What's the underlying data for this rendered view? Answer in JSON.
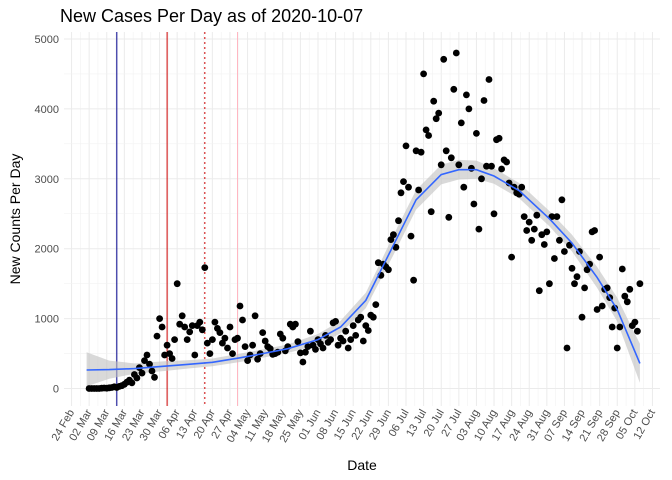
{
  "chart_data": {
    "type": "scatter",
    "title": "New Cases Per Day as of 2020-10-07",
    "xlabel": "Date",
    "ylabel": "New Counts Per Day",
    "ylim": [
      -250,
      5100
    ],
    "xlim": [
      "2020-02-21",
      "2020-10-15"
    ],
    "grid": true,
    "legend": "none",
    "x_ticks": [
      "2020-02-24",
      "2020-03-02",
      "2020-03-09",
      "2020-03-16",
      "2020-03-23",
      "2020-03-30",
      "2020-04-06",
      "2020-04-13",
      "2020-04-20",
      "2020-04-27",
      "2020-05-04",
      "2020-05-11",
      "2020-05-18",
      "2020-05-25",
      "2020-06-01",
      "2020-06-08",
      "2020-06-15",
      "2020-06-22",
      "2020-06-29",
      "2020-07-06",
      "2020-07-13",
      "2020-07-20",
      "2020-07-27",
      "2020-08-03",
      "2020-08-10",
      "2020-08-17",
      "2020-08-24",
      "2020-08-31",
      "2020-09-07",
      "2020-09-14",
      "2020-09-21",
      "2020-09-28",
      "2020-10-05",
      "2020-10-12"
    ],
    "x_tick_labels": [
      "24 Feb",
      "02 Mar",
      "09 Mar",
      "16 Mar",
      "23 Mar",
      "30 Mar",
      "06 Apr",
      "13 Apr",
      "20 Apr",
      "27 Apr",
      "04 May",
      "11 May",
      "18 May",
      "25 May",
      "01 Jun",
      "08 Jun",
      "15 Jun",
      "22 Jun",
      "29 Jun",
      "06 Jul",
      "13 Jul",
      "20 Jul",
      "27 Jul",
      "03 Aug",
      "10 Aug",
      "17 Aug",
      "24 Aug",
      "31 Aug",
      "07 Sep",
      "14 Sep",
      "21 Sep",
      "28 Sep",
      "05 Oct",
      "12 Oct"
    ],
    "y_ticks": [
      0,
      1000,
      2000,
      3000,
      4000,
      5000
    ],
    "y_tick_labels": [
      "0",
      "1000",
      "2000",
      "3000",
      "4000",
      "5000"
    ],
    "vlines": [
      {
        "date": "2020-03-13",
        "color": "#00008b",
        "style": "solid"
      },
      {
        "date": "2020-04-02",
        "color": "#cc0000",
        "style": "solid"
      },
      {
        "date": "2020-04-17",
        "color": "#cc0000",
        "style": "dotted"
      },
      {
        "date": "2020-04-30",
        "color": "#ffb6c1",
        "style": "solid"
      }
    ],
    "series": [
      {
        "type": "points",
        "color": "#000000",
        "points": [
          [
            "2020-03-02",
            0
          ],
          [
            "2020-03-03",
            0
          ],
          [
            "2020-03-04",
            0
          ],
          [
            "2020-03-05",
            0
          ],
          [
            "2020-03-06",
            0
          ],
          [
            "2020-03-07",
            5
          ],
          [
            "2020-03-08",
            8
          ],
          [
            "2020-03-09",
            5
          ],
          [
            "2020-03-10",
            10
          ],
          [
            "2020-03-11",
            15
          ],
          [
            "2020-03-12",
            25
          ],
          [
            "2020-03-13",
            15
          ],
          [
            "2020-03-14",
            30
          ],
          [
            "2020-03-15",
            40
          ],
          [
            "2020-03-16",
            60
          ],
          [
            "2020-03-17",
            90
          ],
          [
            "2020-03-18",
            120
          ],
          [
            "2020-03-19",
            80
          ],
          [
            "2020-03-20",
            200
          ],
          [
            "2020-03-21",
            150
          ],
          [
            "2020-03-22",
            300
          ],
          [
            "2020-03-23",
            220
          ],
          [
            "2020-03-24",
            400
          ],
          [
            "2020-03-25",
            480
          ],
          [
            "2020-03-26",
            350
          ],
          [
            "2020-03-27",
            250
          ],
          [
            "2020-03-28",
            160
          ],
          [
            "2020-03-29",
            750
          ],
          [
            "2020-03-30",
            1000
          ],
          [
            "2020-03-31",
            880
          ],
          [
            "2020-04-01",
            480
          ],
          [
            "2020-04-02",
            620
          ],
          [
            "2020-04-03",
            500
          ],
          [
            "2020-04-04",
            430
          ],
          [
            "2020-04-05",
            700
          ],
          [
            "2020-04-06",
            1500
          ],
          [
            "2020-04-07",
            920
          ],
          [
            "2020-04-08",
            1040
          ],
          [
            "2020-04-09",
            880
          ],
          [
            "2020-04-10",
            700
          ],
          [
            "2020-04-11",
            810
          ],
          [
            "2020-04-12",
            900
          ],
          [
            "2020-04-13",
            480
          ],
          [
            "2020-04-14",
            900
          ],
          [
            "2020-04-15",
            950
          ],
          [
            "2020-04-16",
            840
          ],
          [
            "2020-04-17",
            1730
          ],
          [
            "2020-04-18",
            650
          ],
          [
            "2020-04-19",
            500
          ],
          [
            "2020-04-20",
            700
          ],
          [
            "2020-04-21",
            950
          ],
          [
            "2020-04-22",
            860
          ],
          [
            "2020-04-23",
            800
          ],
          [
            "2020-04-24",
            650
          ],
          [
            "2020-04-25",
            720
          ],
          [
            "2020-04-26",
            580
          ],
          [
            "2020-04-27",
            880
          ],
          [
            "2020-04-28",
            500
          ],
          [
            "2020-04-29",
            700
          ],
          [
            "2020-04-30",
            720
          ],
          [
            "2020-05-01",
            1180
          ],
          [
            "2020-05-02",
            980
          ],
          [
            "2020-05-03",
            600
          ],
          [
            "2020-05-04",
            400
          ],
          [
            "2020-05-05",
            480
          ],
          [
            "2020-05-06",
            620
          ],
          [
            "2020-05-07",
            1040
          ],
          [
            "2020-05-08",
            420
          ],
          [
            "2020-05-09",
            500
          ],
          [
            "2020-05-10",
            800
          ],
          [
            "2020-05-11",
            680
          ],
          [
            "2020-05-12",
            600
          ],
          [
            "2020-05-13",
            570
          ],
          [
            "2020-05-14",
            490
          ],
          [
            "2020-05-15",
            500
          ],
          [
            "2020-05-16",
            520
          ],
          [
            "2020-05-17",
            780
          ],
          [
            "2020-05-18",
            720
          ],
          [
            "2020-05-19",
            540
          ],
          [
            "2020-05-20",
            600
          ],
          [
            "2020-05-21",
            920
          ],
          [
            "2020-05-22",
            880
          ],
          [
            "2020-05-23",
            920
          ],
          [
            "2020-05-24",
            670
          ],
          [
            "2020-05-25",
            510
          ],
          [
            "2020-05-26",
            380
          ],
          [
            "2020-05-27",
            520
          ],
          [
            "2020-05-28",
            600
          ],
          [
            "2020-05-29",
            820
          ],
          [
            "2020-05-30",
            620
          ],
          [
            "2020-05-31",
            560
          ],
          [
            "2020-06-01",
            700
          ],
          [
            "2020-06-02",
            640
          ],
          [
            "2020-06-03",
            580
          ],
          [
            "2020-06-04",
            760
          ],
          [
            "2020-06-05",
            660
          ],
          [
            "2020-06-06",
            700
          ],
          [
            "2020-06-07",
            940
          ],
          [
            "2020-06-08",
            960
          ],
          [
            "2020-06-09",
            620
          ],
          [
            "2020-06-10",
            720
          ],
          [
            "2020-06-11",
            680
          ],
          [
            "2020-06-12",
            820
          ],
          [
            "2020-06-13",
            580
          ],
          [
            "2020-06-14",
            700
          ],
          [
            "2020-06-15",
            900
          ],
          [
            "2020-06-16",
            760
          ],
          [
            "2020-06-17",
            980
          ],
          [
            "2020-06-18",
            1020
          ],
          [
            "2020-06-19",
            680
          ],
          [
            "2020-06-20",
            900
          ],
          [
            "2020-06-21",
            830
          ],
          [
            "2020-06-22",
            1050
          ],
          [
            "2020-06-23",
            1020
          ],
          [
            "2020-06-24",
            1200
          ],
          [
            "2020-06-25",
            1800
          ],
          [
            "2020-06-26",
            1620
          ],
          [
            "2020-06-27",
            1780
          ],
          [
            "2020-06-28",
            1740
          ],
          [
            "2020-06-29",
            1700
          ],
          [
            "2020-06-30",
            2130
          ],
          [
            "2020-07-01",
            2200
          ],
          [
            "2020-07-02",
            2020
          ],
          [
            "2020-07-03",
            2400
          ],
          [
            "2020-07-04",
            2800
          ],
          [
            "2020-07-05",
            2960
          ],
          [
            "2020-07-06",
            3470
          ],
          [
            "2020-07-07",
            2880
          ],
          [
            "2020-07-08",
            2180
          ],
          [
            "2020-07-09",
            1550
          ],
          [
            "2020-07-10",
            3400
          ],
          [
            "2020-07-11",
            2840
          ],
          [
            "2020-07-12",
            3380
          ],
          [
            "2020-07-13",
            4500
          ],
          [
            "2020-07-14",
            3700
          ],
          [
            "2020-07-15",
            3620
          ],
          [
            "2020-07-16",
            2530
          ],
          [
            "2020-07-17",
            4110
          ],
          [
            "2020-07-18",
            3860
          ],
          [
            "2020-07-19",
            3940
          ],
          [
            "2020-07-20",
            3200
          ],
          [
            "2020-07-21",
            4710
          ],
          [
            "2020-07-22",
            3400
          ],
          [
            "2020-07-23",
            2450
          ],
          [
            "2020-07-24",
            3300
          ],
          [
            "2020-07-25",
            4280
          ],
          [
            "2020-07-26",
            4800
          ],
          [
            "2020-07-27",
            3200
          ],
          [
            "2020-07-28",
            3800
          ],
          [
            "2020-07-29",
            2880
          ],
          [
            "2020-07-30",
            4200
          ],
          [
            "2020-07-31",
            4000
          ],
          [
            "2020-08-01",
            3150
          ],
          [
            "2020-08-02",
            2640
          ],
          [
            "2020-08-03",
            3650
          ],
          [
            "2020-08-04",
            2280
          ],
          [
            "2020-08-05",
            3000
          ],
          [
            "2020-08-06",
            4120
          ],
          [
            "2020-08-07",
            3180
          ],
          [
            "2020-08-08",
            4420
          ],
          [
            "2020-08-09",
            3180
          ],
          [
            "2020-08-10",
            2500
          ],
          [
            "2020-08-11",
            3560
          ],
          [
            "2020-08-12",
            3580
          ],
          [
            "2020-08-13",
            3140
          ],
          [
            "2020-08-14",
            3270
          ],
          [
            "2020-08-15",
            3240
          ],
          [
            "2020-08-16",
            2940
          ],
          [
            "2020-08-17",
            1880
          ],
          [
            "2020-08-18",
            2880
          ],
          [
            "2020-08-19",
            2800
          ],
          [
            "2020-08-20",
            2780
          ],
          [
            "2020-08-21",
            2880
          ],
          [
            "2020-08-22",
            2460
          ],
          [
            "2020-08-23",
            2260
          ],
          [
            "2020-08-24",
            2380
          ],
          [
            "2020-08-25",
            2120
          ],
          [
            "2020-08-26",
            2280
          ],
          [
            "2020-08-27",
            2480
          ],
          [
            "2020-08-28",
            1400
          ],
          [
            "2020-08-29",
            2200
          ],
          [
            "2020-08-30",
            2060
          ],
          [
            "2020-08-31",
            2240
          ],
          [
            "2020-09-01",
            1500
          ],
          [
            "2020-09-02",
            2460
          ],
          [
            "2020-09-03",
            1860
          ],
          [
            "2020-09-04",
            2460
          ],
          [
            "2020-09-05",
            2120
          ],
          [
            "2020-09-06",
            2700
          ],
          [
            "2020-09-07",
            1960
          ],
          [
            "2020-09-08",
            580
          ],
          [
            "2020-09-09",
            2050
          ],
          [
            "2020-09-10",
            1720
          ],
          [
            "2020-09-11",
            1500
          ],
          [
            "2020-09-12",
            1600
          ],
          [
            "2020-09-13",
            1960
          ],
          [
            "2020-09-14",
            1020
          ],
          [
            "2020-09-15",
            1440
          ],
          [
            "2020-09-16",
            1700
          ],
          [
            "2020-09-17",
            1780
          ],
          [
            "2020-09-18",
            2240
          ],
          [
            "2020-09-19",
            2260
          ],
          [
            "2020-09-20",
            1130
          ],
          [
            "2020-09-21",
            1880
          ],
          [
            "2020-09-22",
            1180
          ],
          [
            "2020-09-23",
            1420
          ],
          [
            "2020-09-24",
            1440
          ],
          [
            "2020-09-25",
            1300
          ],
          [
            "2020-09-26",
            880
          ],
          [
            "2020-09-27",
            1150
          ],
          [
            "2020-09-28",
            580
          ],
          [
            "2020-09-29",
            880
          ],
          [
            "2020-09-30",
            1710
          ],
          [
            "2020-10-01",
            1320
          ],
          [
            "2020-10-02",
            1240
          ],
          [
            "2020-10-03",
            1420
          ],
          [
            "2020-10-04",
            900
          ],
          [
            "2020-10-05",
            950
          ],
          [
            "2020-10-06",
            820
          ],
          [
            "2020-10-07",
            1500
          ]
        ]
      },
      {
        "type": "smooth",
        "color": "#3366ff",
        "band_color": "#bfbfbf",
        "points": [
          [
            "2020-03-01",
            265
          ],
          [
            "2020-03-10",
            270
          ],
          [
            "2020-03-20",
            285
          ],
          [
            "2020-04-01",
            320
          ],
          [
            "2020-04-10",
            345
          ],
          [
            "2020-04-20",
            375
          ],
          [
            "2020-05-01",
            440
          ],
          [
            "2020-05-10",
            500
          ],
          [
            "2020-05-20",
            570
          ],
          [
            "2020-06-01",
            700
          ],
          [
            "2020-06-10",
            880
          ],
          [
            "2020-06-20",
            1260
          ],
          [
            "2020-07-01",
            2050
          ],
          [
            "2020-07-10",
            2700
          ],
          [
            "2020-07-20",
            3060
          ],
          [
            "2020-07-27",
            3130
          ],
          [
            "2020-08-03",
            3130
          ],
          [
            "2020-08-10",
            3040
          ],
          [
            "2020-08-20",
            2830
          ],
          [
            "2020-09-01",
            2430
          ],
          [
            "2020-09-10",
            2080
          ],
          [
            "2020-09-20",
            1590
          ],
          [
            "2020-09-28",
            1130
          ],
          [
            "2020-10-07",
            360
          ]
        ],
        "lower": [
          30,
          140,
          210,
          250,
          285,
          320,
          380,
          440,
          510,
          620,
          790,
          1150,
          1910,
          2560,
          2920,
          2990,
          3000,
          2930,
          2720,
          2320,
          1960,
          1440,
          960,
          80
        ],
        "upper": [
          520,
          400,
          360,
          390,
          405,
          430,
          500,
          560,
          630,
          780,
          970,
          1370,
          2190,
          2840,
          3200,
          3270,
          3260,
          3150,
          2940,
          2540,
          2200,
          1740,
          1300,
          640
        ]
      }
    ]
  }
}
